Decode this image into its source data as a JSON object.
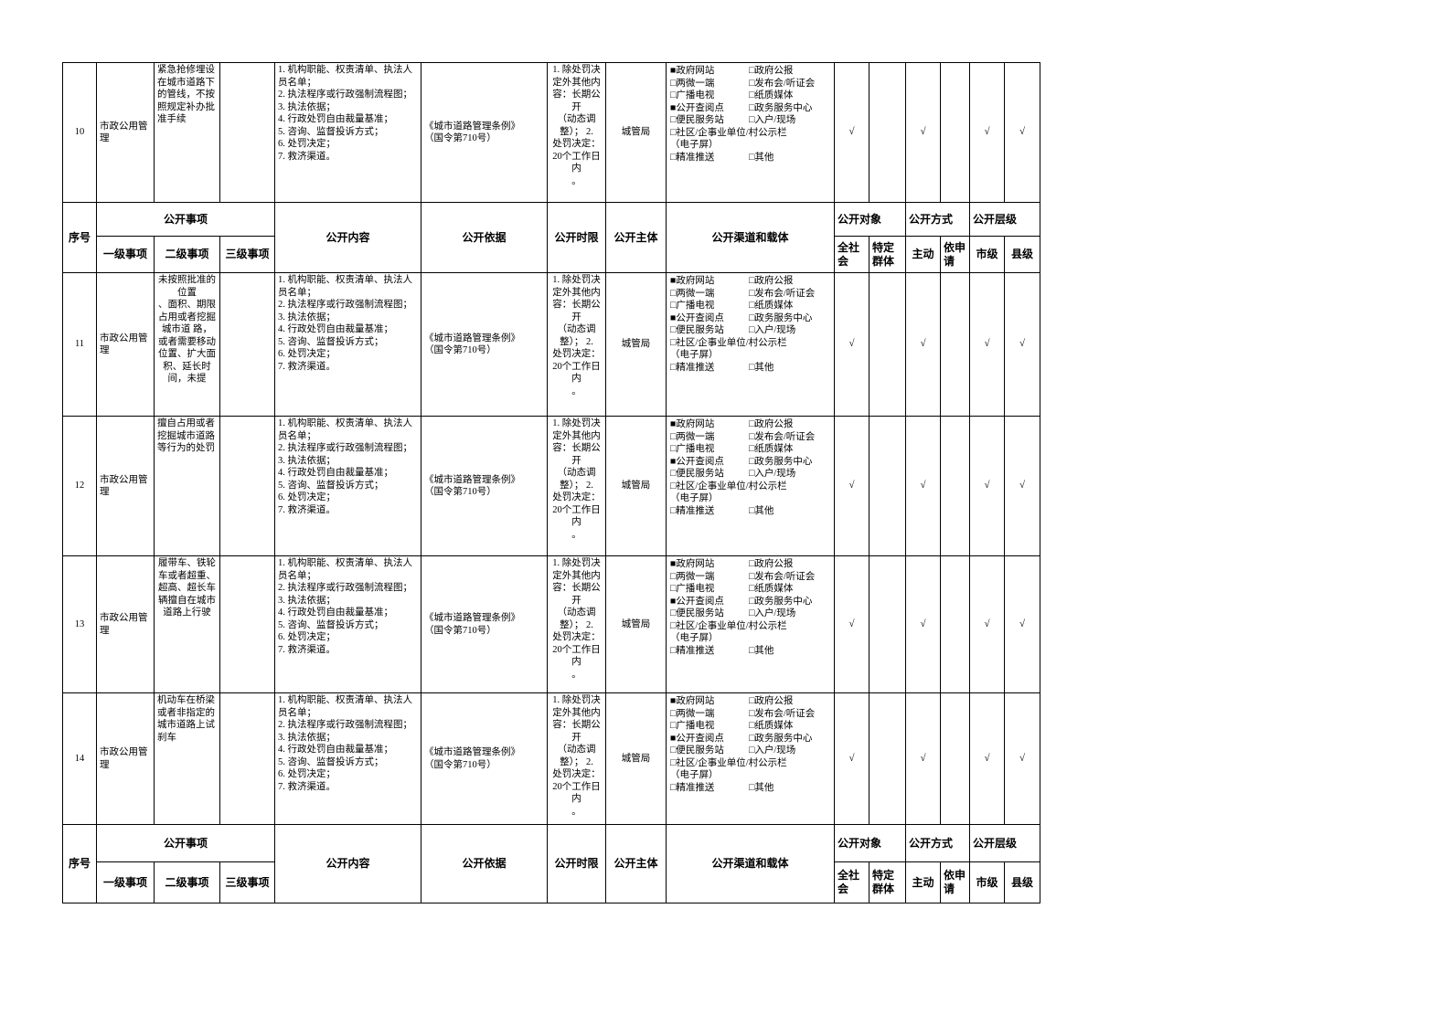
{
  "page": {
    "background": "#ffffff",
    "table_border_color": "#000000"
  },
  "table": {
    "header": {
      "seq": "序号",
      "items_group": "公开事项",
      "level1": "一级事项",
      "level2": "二级事项",
      "level3": "三级事项",
      "content": "公开内容",
      "basis": "公开依据",
      "time_limit": "公开时限",
      "subject": "公开主体",
      "channels": "公开渠道和载体",
      "audience_group": "公开对象",
      "audience_all": "全社会",
      "audience_specific": "特定群体",
      "method_group": "公开方式",
      "method_proactive": "主动",
      "method_on_request": "依申请",
      "level_group": "公开层级",
      "level_city": "市级",
      "level_county": "县级"
    },
    "common": {
      "content": "1. 机构职能、权责清单、执法人\n员名单；\n2. 执法程序或行政强制流程图；\n3. 执法依据；\n4. 行政处罚自由裁量基准；\n5. 咨询、监督投诉方式；\n6. 处罚决定；\n7. 救济渠道。",
      "basis": "《城市道路管理条例》\n（国令第710号）",
      "time_limit": "1. 除处罚决\n定外其他内\n容：长期公\n开\n（动态调\n整）； 2.\n处罚决定：\n20个工作日\n内\n。",
      "subject": "城管局",
      "channel_lines": [
        {
          "left": "■政府网站",
          "right": "□政府公报"
        },
        {
          "left": "□两微一端",
          "right": "□发布会/听证会"
        },
        {
          "left": "□广播电视",
          "right": "□纸质媒体"
        },
        {
          "left": "■公开查阅点",
          "right": "□政务服务中心"
        },
        {
          "left": "□便民服务站",
          "right": "□入户/现场"
        },
        {
          "left": "□社区/企事业单位/村公示栏",
          "right": ""
        },
        {
          "left": "（电子屏）",
          "right": ""
        },
        {
          "left": "□精准推送",
          "right": "□其他"
        }
      ],
      "checks": {
        "audience_all": "√",
        "audience_specific": "",
        "method_proactive": "√",
        "method_on_request": "",
        "level_city": "√",
        "level_county": "√"
      }
    },
    "rows": [
      {
        "seq": "10",
        "level1": "市政公用管理",
        "level2": "紧急抢修埋设\n在城市道路下\n的管线，不按\n照规定补办批\n准手续",
        "level2_align": "left",
        "level3": ""
      },
      {
        "seq": "11",
        "level1": "市政公用管理",
        "level2": "未按照批准的\n位置\n、面积、期限\n占用或者挖掘\n城市道 路，\n或者需要移动\n位置、扩大面\n积、延长时\n间，未提",
        "level2_align": "center",
        "level3": ""
      },
      {
        "seq": "12",
        "level1": "市政公用管理",
        "level2": "擅自占用或者\n挖掘城市道路\n等行为的处罚",
        "level2_align": "left",
        "level3": ""
      },
      {
        "seq": "13",
        "level1": "市政公用管理",
        "level2": "履带车、铁轮\n车或者超重、\n超高、超长车\n辆擅自在城市\n道路上行驶",
        "level2_align": "center",
        "level3": ""
      },
      {
        "seq": "14",
        "level1": "市政公用管理",
        "level2": "机动车在桥梁\n或者非指定的\n城市道路上试\n刹车",
        "level2_align": "left",
        "level3": ""
      }
    ]
  }
}
